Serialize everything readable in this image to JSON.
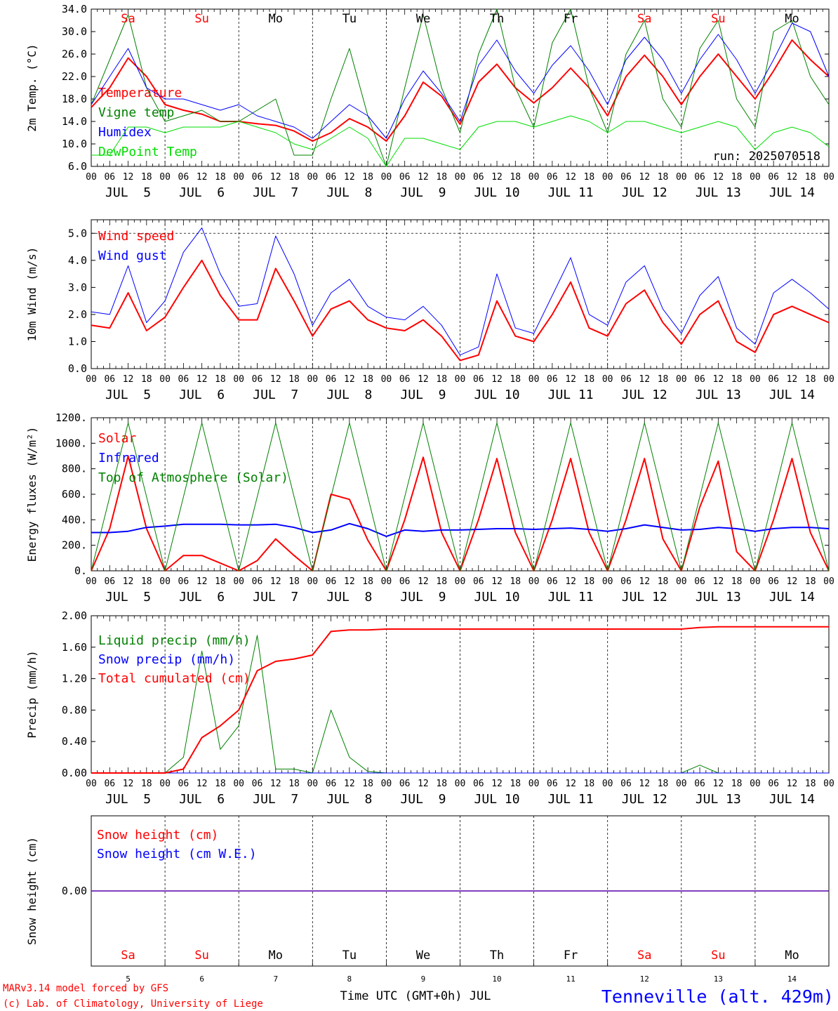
{
  "colors": {
    "red": "#ff0000",
    "blue": "#0000ff",
    "green": "#008000",
    "lightgreen": "#00dd00",
    "black": "#000000"
  },
  "days": [
    "Sa",
    "Su",
    "Mo",
    "Tu",
    "We",
    "Th",
    "Fr",
    "Sa",
    "Su",
    "Mo"
  ],
  "day_colors": [
    "#ff0000",
    "#ff0000",
    "#000000",
    "#000000",
    "#000000",
    "#000000",
    "#000000",
    "#ff0000",
    "#ff0000",
    "#000000"
  ],
  "dates": [
    "JUL  5",
    "JUL  6",
    "JUL  7",
    "JUL  8",
    "JUL  9",
    "JUL 10",
    "JUL 11",
    "JUL 12",
    "JUL 13",
    "JUL 14"
  ],
  "date_numbers": [
    "5",
    "6",
    "7",
    "8",
    "9",
    "10",
    "11",
    "12",
    "13",
    "14"
  ],
  "hour_ticks": [
    "00",
    "06",
    "12",
    "18"
  ],
  "end_hour": "00",
  "footer": {
    "model": "MARv3.14 model forced by GFS",
    "credit": "(c) Lab. of Climatology, University of Liege",
    "xlabel": "Time UTC (GMT+0h) JUL",
    "station": "Tenneville (alt. 429m)"
  },
  "chart_data": [
    {
      "type": "line",
      "ylabel": "2m Temp. (°C)",
      "ylim": [
        6,
        34
      ],
      "yticks": [
        "6.0",
        "10.0",
        "14.0",
        "18.0",
        "22.0",
        "26.0",
        "30.0",
        "34.0"
      ],
      "annotation": "run: 2025070518",
      "x_hours": [
        0,
        6,
        12,
        18,
        24,
        30,
        36,
        42,
        48,
        54,
        60,
        66,
        72,
        78,
        84,
        90,
        96,
        102,
        108,
        114,
        120,
        126,
        132,
        138,
        144,
        150,
        156,
        162,
        168,
        174,
        180,
        186,
        192,
        198,
        204,
        210,
        216,
        222,
        228,
        234,
        240
      ],
      "series": [
        {
          "name": "Temperature",
          "color": "#ff0000",
          "width": 2,
          "values": [
            16.5,
            20,
            25.3,
            22,
            17,
            16,
            15.3,
            14,
            14,
            13.6,
            13.3,
            12.3,
            10.5,
            12,
            14.5,
            13,
            10.5,
            15,
            21,
            18.5,
            13.5,
            21,
            24.2,
            20,
            17.3,
            20,
            23.5,
            20,
            15,
            22,
            25.8,
            22,
            17,
            22,
            26,
            22,
            18,
            23,
            28.5,
            25,
            22
          ]
        },
        {
          "name": "Vigne temp",
          "color": "#008000",
          "width": 1,
          "values": [
            17,
            25,
            33,
            20,
            14,
            15,
            16,
            14,
            14,
            16,
            18,
            8,
            8,
            18,
            27,
            15,
            6,
            20,
            33,
            20,
            12,
            26,
            34,
            20,
            13,
            28,
            34,
            20,
            12,
            26,
            32,
            18,
            13,
            27,
            32,
            18,
            13,
            30,
            32,
            22,
            17
          ]
        },
        {
          "name": "Humidex",
          "color": "#0000ff",
          "width": 1,
          "values": [
            17,
            22,
            27,
            20,
            18,
            18,
            17,
            16,
            17,
            15,
            14,
            13,
            11,
            14,
            17,
            15,
            11,
            18,
            23,
            19,
            14,
            24,
            28.5,
            23,
            19,
            24,
            27.5,
            23,
            17,
            25,
            29,
            25,
            19,
            25,
            29.5,
            25,
            19,
            25,
            31.5,
            30,
            22
          ]
        },
        {
          "name": "DewPoint Temp",
          "color": "#00dd00",
          "width": 1,
          "values": [
            8,
            8,
            13,
            13,
            12,
            13,
            13,
            13,
            14,
            13,
            12,
            10,
            9,
            11,
            13,
            11,
            6,
            11,
            11,
            10,
            9,
            13,
            14,
            14,
            13,
            14,
            15,
            14,
            12,
            14,
            14,
            13,
            12,
            13,
            14,
            13,
            9,
            12,
            13,
            12,
            9.5
          ]
        }
      ]
    },
    {
      "type": "line",
      "ylabel": "10m Wind (m/s)",
      "ylim": [
        0,
        5.5
      ],
      "yticks": [
        "0.0",
        "1.0",
        "2.0",
        "3.0",
        "4.0",
        "5.0"
      ],
      "x_hours": [
        0,
        6,
        12,
        18,
        24,
        30,
        36,
        42,
        48,
        54,
        60,
        66,
        72,
        78,
        84,
        90,
        96,
        102,
        108,
        114,
        120,
        126,
        132,
        138,
        144,
        150,
        156,
        162,
        168,
        174,
        180,
        186,
        192,
        198,
        204,
        210,
        216,
        222,
        228,
        234,
        240
      ],
      "series": [
        {
          "name": "Wind speed",
          "color": "#ff0000",
          "width": 2,
          "values": [
            1.6,
            1.5,
            2.8,
            1.4,
            1.9,
            3.0,
            4.0,
            2.7,
            1.8,
            1.8,
            3.7,
            2.5,
            1.2,
            2.2,
            2.5,
            1.8,
            1.5,
            1.4,
            1.8,
            1.2,
            0.3,
            0.5,
            2.5,
            1.2,
            1.0,
            2.0,
            3.2,
            1.5,
            1.2,
            2.4,
            2.9,
            1.7,
            0.9,
            2.0,
            2.5,
            1.0,
            0.6,
            2.0,
            2.3,
            2.0,
            1.7
          ]
        },
        {
          "name": "Wind gust",
          "color": "#0000ff",
          "width": 1,
          "values": [
            2.1,
            2.0,
            3.8,
            1.7,
            2.5,
            4.3,
            5.2,
            3.5,
            2.3,
            2.4,
            4.9,
            3.5,
            1.6,
            2.8,
            3.3,
            2.3,
            1.9,
            1.8,
            2.3,
            1.6,
            0.5,
            0.8,
            3.5,
            1.5,
            1.3,
            2.7,
            4.1,
            2.0,
            1.6,
            3.2,
            3.8,
            2.2,
            1.3,
            2.7,
            3.4,
            1.5,
            0.9,
            2.8,
            3.3,
            2.8,
            2.2
          ]
        }
      ]
    },
    {
      "type": "line",
      "ylabel": "Energy fluxes (W/m²)",
      "ylim": [
        0,
        1200
      ],
      "yticks": [
        "0.",
        "200.",
        "400.",
        "600.",
        "800.",
        "1000.",
        "1200."
      ],
      "x_hours": [
        0,
        6,
        12,
        18,
        24,
        30,
        36,
        42,
        48,
        54,
        60,
        66,
        72,
        78,
        84,
        90,
        96,
        102,
        108,
        114,
        120,
        126,
        132,
        138,
        144,
        150,
        156,
        162,
        168,
        174,
        180,
        186,
        192,
        198,
        204,
        210,
        216,
        222,
        228,
        234,
        240
      ],
      "series": [
        {
          "name": "Solar",
          "color": "#ff0000",
          "width": 2,
          "values": [
            0,
            330,
            900,
            330,
            0,
            120,
            120,
            60,
            0,
            80,
            250,
            120,
            0,
            600,
            560,
            240,
            0,
            400,
            890,
            300,
            0,
            400,
            880,
            300,
            0,
            400,
            880,
            300,
            0,
            400,
            880,
            250,
            0,
            500,
            860,
            150,
            0,
            400,
            880,
            300,
            0
          ]
        },
        {
          "name": "Infrared",
          "color": "#0000ff",
          "width": 2,
          "values": [
            300,
            300,
            310,
            340,
            350,
            365,
            365,
            365,
            360,
            360,
            365,
            340,
            300,
            320,
            370,
            330,
            270,
            320,
            310,
            320,
            320,
            325,
            330,
            330,
            325,
            330,
            335,
            325,
            310,
            330,
            360,
            340,
            320,
            325,
            340,
            330,
            310,
            330,
            340,
            340,
            330
          ]
        },
        {
          "name": "Top of Atmosphere (Solar)",
          "color": "#008000",
          "width": 1,
          "values": [
            0,
            580,
            1160,
            580,
            0,
            580,
            1160,
            580,
            0,
            580,
            1160,
            580,
            0,
            580,
            1160,
            580,
            0,
            580,
            1160,
            580,
            0,
            580,
            1160,
            580,
            0,
            580,
            1160,
            580,
            0,
            580,
            1160,
            580,
            0,
            580,
            1160,
            580,
            0,
            580,
            1160,
            580,
            0
          ]
        }
      ]
    },
    {
      "type": "line",
      "ylabel": "Precip (mm/h)",
      "ylim": [
        0,
        2
      ],
      "yticks": [
        "0.00",
        "0.40",
        "0.80",
        "1.20",
        "1.60",
        "2.00"
      ],
      "x_hours": [
        0,
        6,
        12,
        18,
        24,
        30,
        36,
        42,
        48,
        54,
        60,
        66,
        72,
        78,
        84,
        90,
        96,
        102,
        108,
        114,
        120,
        126,
        132,
        138,
        144,
        150,
        156,
        162,
        168,
        174,
        180,
        186,
        192,
        198,
        204,
        210,
        216,
        222,
        228,
        234,
        240
      ],
      "series": [
        {
          "name": "Liquid precip (mm/h)",
          "color": "#008000",
          "width": 1,
          "values": [
            0,
            0,
            0,
            0,
            0,
            0.2,
            1.55,
            0.3,
            0.6,
            1.75,
            0.05,
            0.05,
            0,
            0.8,
            0.2,
            0.02,
            0,
            0,
            0,
            0,
            0,
            0,
            0,
            0,
            0,
            0,
            0,
            0,
            0,
            0,
            0,
            0,
            0,
            0.1,
            0,
            0,
            0,
            0,
            0,
            0,
            0
          ]
        },
        {
          "name": "Snow precip (mm/h)",
          "color": "#0000ff",
          "width": 1,
          "values": [
            0,
            0,
            0,
            0,
            0,
            0,
            0,
            0,
            0,
            0,
            0,
            0,
            0,
            0,
            0,
            0,
            0,
            0,
            0,
            0,
            0,
            0,
            0,
            0,
            0,
            0,
            0,
            0,
            0,
            0,
            0,
            0,
            0,
            0,
            0,
            0,
            0,
            0,
            0,
            0,
            0
          ]
        },
        {
          "name": "Total cumulated (cm)",
          "color": "#ff0000",
          "width": 2,
          "values": [
            0,
            0,
            0,
            0,
            0,
            0.05,
            0.45,
            0.6,
            0.8,
            1.3,
            1.42,
            1.45,
            1.5,
            1.8,
            1.82,
            1.82,
            1.83,
            1.83,
            1.83,
            1.83,
            1.83,
            1.83,
            1.83,
            1.83,
            1.83,
            1.83,
            1.83,
            1.83,
            1.83,
            1.83,
            1.83,
            1.83,
            1.83,
            1.85,
            1.86,
            1.86,
            1.86,
            1.86,
            1.86,
            1.86,
            1.86
          ]
        }
      ]
    },
    {
      "type": "line",
      "ylabel": "Snow height (cm)",
      "ylim": [
        -1,
        1
      ],
      "yticks": [
        "0.00"
      ],
      "x_hours": [
        0,
        240
      ],
      "series": [
        {
          "name": "Snow height (cm)",
          "color": "#ff0000",
          "width": 1.5,
          "values": [
            0,
            0
          ]
        },
        {
          "name": "Snow height (cm W.E.)",
          "color": "#0000ff",
          "width": 1,
          "values": [
            0,
            0
          ]
        }
      ]
    }
  ]
}
